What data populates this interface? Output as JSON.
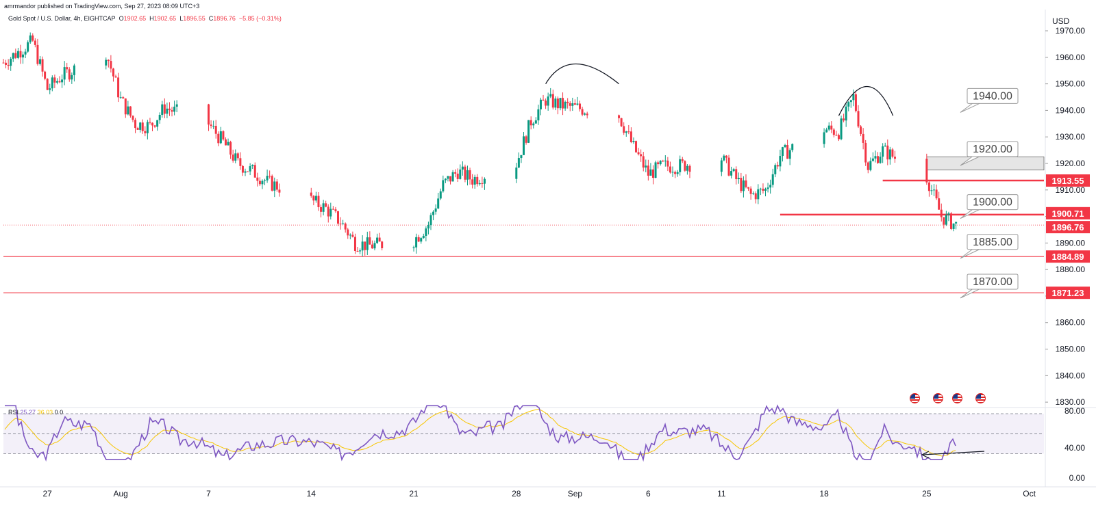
{
  "header": {
    "published": "amrmandor published on TradingView.com, Sep 27, 2023 08:09 UTC+3",
    "symbol": "Gold Spot / U.S. Dollar, 4h, EIGHTCAP",
    "o_label": "O",
    "o": "1902.65",
    "h_label": "H",
    "h": "1902.65",
    "l_label": "L",
    "l": "1896.55",
    "c_label": "C",
    "c": "1896.76",
    "change": "−5.85 (−0.31%)"
  },
  "axis": {
    "currency": "USD",
    "price_ticks": [
      "1970.00",
      "1960.00",
      "1950.00",
      "1940.00",
      "1930.00",
      "1920.00",
      "1910.00",
      "1900.00",
      "1890.00",
      "1880.00",
      "1870.00",
      "1860.00",
      "1850.00",
      "1840.00",
      "1830.00"
    ],
    "rsi_ticks": [
      "80.00",
      "40.00",
      "0.00"
    ],
    "time_ticks": [
      "27",
      "Aug",
      "7",
      "14",
      "21",
      "28",
      "Sep",
      "6",
      "11",
      "18",
      "25",
      "Oct"
    ]
  },
  "price_labels": [
    {
      "text": "1913.55",
      "price": 1913.55,
      "color": "#f23645"
    },
    {
      "text": "1900.71",
      "price": 1900.71,
      "color": "#f23645"
    },
    {
      "text": "1896.76",
      "price": 1896.76,
      "color": "#f23645"
    },
    {
      "text": "1884.89",
      "price": 1884.89,
      "color": "#f23645"
    },
    {
      "text": "1871.23",
      "price": 1871.23,
      "color": "#f23645"
    }
  ],
  "callouts": [
    {
      "text": "1940.00",
      "price": 1940
    },
    {
      "text": "1920.00",
      "price": 1920
    },
    {
      "text": "1900.00",
      "price": 1900
    },
    {
      "text": "1885.00",
      "price": 1885
    },
    {
      "text": "1870.00",
      "price": 1870
    }
  ],
  "rsi_legend": {
    "name": "RSI",
    "value": "25.27",
    "ma": "36.03",
    "extra": "0 0"
  },
  "colors": {
    "up": "#089981",
    "down": "#f23645",
    "level": "#f23645",
    "rsi": "#7e57c2",
    "rsi_ma": "#f7c600",
    "zone": "#dddddd"
  },
  "chart_data": {
    "type": "candlestick",
    "timeframe": "4h",
    "ylim": [
      1829,
      1978
    ],
    "x_range_days": [
      "2023-07-24",
      "2023-10-03"
    ],
    "levels": [
      {
        "price": 1913.55,
        "from": "2023-09-22",
        "to": "end"
      },
      {
        "price": 1900.71,
        "from": "2023-09-15",
        "to": "end"
      },
      {
        "price": 1884.89,
        "from": "start",
        "to": "end"
      },
      {
        "price": 1871.23,
        "from": "start",
        "to": "end"
      }
    ],
    "zone": {
      "top": 1922.5,
      "bottom": 1917.5,
      "from": "2023-09-25",
      "to": "end"
    },
    "close_path": [
      [
        "2023-07-24",
        1958
      ],
      [
        "2023-07-25",
        1962
      ],
      [
        "2023-07-26",
        1966
      ],
      [
        "2023-07-27",
        1948
      ],
      [
        "2023-07-28",
        1953
      ],
      [
        "2023-07-31",
        1962
      ],
      [
        "2023-08-01",
        1944
      ],
      [
        "2023-08-02",
        1935
      ],
      [
        "2023-08-03",
        1934
      ],
      [
        "2023-08-04",
        1941
      ],
      [
        "2023-08-07",
        1935
      ],
      [
        "2023-08-08",
        1928
      ],
      [
        "2023-08-09",
        1920
      ],
      [
        "2023-08-10",
        1917
      ],
      [
        "2023-08-11",
        1913
      ],
      [
        "2023-08-14",
        1906
      ],
      [
        "2023-08-15",
        1903
      ],
      [
        "2023-08-16",
        1898
      ],
      [
        "2023-08-17",
        1890
      ],
      [
        "2023-08-18",
        1889
      ],
      [
        "2023-08-21",
        1891
      ],
      [
        "2023-08-22",
        1897
      ],
      [
        "2023-08-23",
        1912
      ],
      [
        "2023-08-24",
        1917
      ],
      [
        "2023-08-25",
        1914
      ],
      [
        "2023-08-28",
        1920
      ],
      [
        "2023-08-29",
        1936
      ],
      [
        "2023-08-30",
        1944
      ],
      [
        "2023-08-31",
        1942
      ],
      [
        "2023-09-01",
        1941
      ],
      [
        "2023-09-04",
        1938
      ],
      [
        "2023-09-05",
        1926
      ],
      [
        "2023-09-06",
        1916
      ],
      [
        "2023-09-07",
        1919
      ],
      [
        "2023-09-08",
        1919
      ],
      [
        "2023-09-11",
        1922
      ],
      [
        "2023-09-12",
        1914
      ],
      [
        "2023-09-13",
        1908
      ],
      [
        "2023-09-14",
        1910
      ],
      [
        "2023-09-15",
        1923
      ],
      [
        "2023-09-18",
        1933
      ],
      [
        "2023-09-19",
        1932
      ],
      [
        "2023-09-20",
        1945
      ],
      [
        "2023-09-21",
        1919
      ],
      [
        "2023-09-22",
        1925
      ],
      [
        "2023-09-25",
        1915
      ],
      [
        "2023-09-26",
        1900
      ],
      [
        "2023-09-27",
        1896.76
      ]
    ],
    "rsi": {
      "last": 25.27,
      "ma_last": 36.03,
      "levels": [
        70,
        50,
        30
      ]
    }
  }
}
